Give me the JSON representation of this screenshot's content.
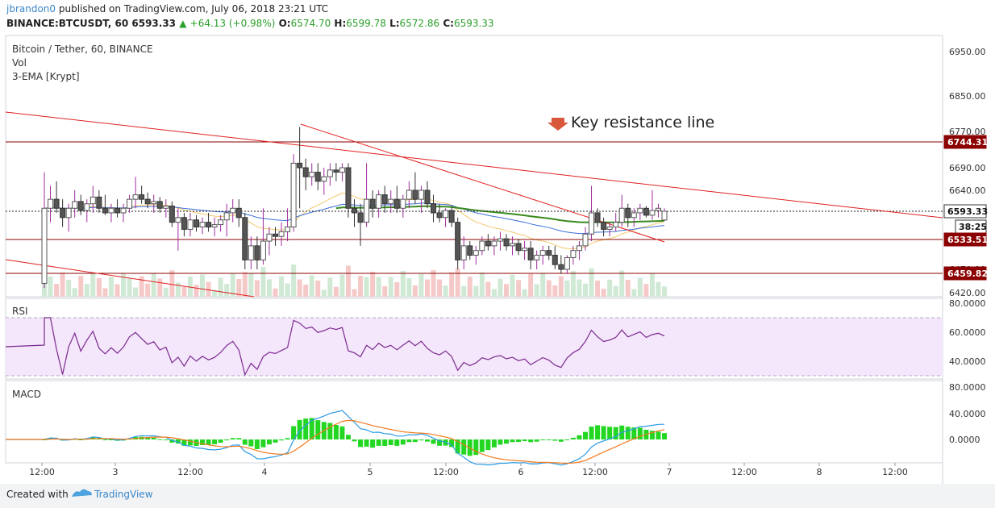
{
  "header": {
    "user": "jbrandon0",
    "published_text": "published on TradingView.com, July 06, 2018 23:21 UTC",
    "symbol": "BINANCE:BTCUSDT, 60",
    "last": "6593.33",
    "change": "+64.13 (+0.98%)",
    "o_label": "O:",
    "o": "6574.70",
    "h_label": "H:",
    "h": "6599.78",
    "l_label": "L:",
    "l": "6572.86",
    "c_label": "C:",
    "c": "6593.33"
  },
  "legend": {
    "title": "Bitcoin / Tether, 60, BINANCE",
    "vol": "Vol",
    "ema": "3-EMA [Krypt]"
  },
  "annotation": "Key resistance line",
  "panes": {
    "rsi": "RSI",
    "macd": "MACD"
  },
  "footer": {
    "created": "Created with",
    "brand": "TradingView"
  },
  "colors": {
    "up": "#ffffff",
    "down": "#555555",
    "wick_up": "#9e2a9e",
    "hline": "#8b0000",
    "trend": "#e02020",
    "ema_fast": "#f5c86b",
    "ema_mid": "#3a6fd8",
    "ema_slow": "#3a8a1e",
    "rsi": "#7b2a8f",
    "rsi_band": "#f4e6fb",
    "macd": "#2b9be6",
    "signal": "#f07a1e",
    "hist": "#22d622",
    "label_bg": "#8b0000",
    "last_bg": "#1b1b1b"
  },
  "chart_data": {
    "type": "candlestick",
    "price_axis": {
      "ticks": [
        "6950.00",
        "6850.00",
        "6770.00",
        "6690.00",
        "6640.00",
        "6593.33",
        "6533.51",
        "6470.00",
        "6420.00"
      ],
      "ylim": [
        6400,
        7000
      ],
      "scale": "log"
    },
    "time_axis": [
      "12:00",
      "3",
      "12:00",
      "4",
      "5",
      "12:00",
      "6",
      "12:00",
      "7",
      "12:00",
      "8",
      "12:00"
    ],
    "price_labels": [
      {
        "text": "6744.31",
        "kind": "resistance"
      },
      {
        "text": "6593.33",
        "kind": "last"
      },
      {
        "text": "38:25",
        "kind": "countdown"
      },
      {
        "text": "6533.51",
        "kind": "support"
      },
      {
        "text": "6459.82",
        "kind": "support"
      }
    ],
    "horizontal_lines": [
      6744.31,
      6533.51,
      6459.82
    ],
    "rsi_axis": [
      "80.0000",
      "60.0000",
      "40.0000"
    ],
    "macd_axis": [
      "80.0000",
      "40.0000",
      "0.0000"
    ],
    "candles": [
      [
        6440,
        6680,
        6430,
        6600
      ],
      [
        6600,
        6650,
        6570,
        6620
      ],
      [
        6620,
        6660,
        6590,
        6600
      ],
      [
        6600,
        6620,
        6560,
        6580
      ],
      [
        6580,
        6610,
        6550,
        6600
      ],
      [
        6600,
        6640,
        6580,
        6615
      ],
      [
        6615,
        6630,
        6585,
        6595
      ],
      [
        6595,
        6620,
        6570,
        6610
      ],
      [
        6610,
        6650,
        6590,
        6625
      ],
      [
        6625,
        6640,
        6590,
        6600
      ],
      [
        6600,
        6630,
        6585,
        6590
      ],
      [
        6590,
        6610,
        6570,
        6600
      ],
      [
        6600,
        6620,
        6580,
        6590
      ],
      [
        6590,
        6610,
        6570,
        6600
      ],
      [
        6600,
        6630,
        6590,
        6620
      ],
      [
        6620,
        6670,
        6600,
        6630
      ],
      [
        6630,
        6650,
        6610,
        6620
      ],
      [
        6620,
        6635,
        6600,
        6610
      ],
      [
        6610,
        6630,
        6590,
        6615
      ],
      [
        6615,
        6625,
        6590,
        6600
      ],
      [
        6600,
        6620,
        6580,
        6605
      ],
      [
        6605,
        6615,
        6560,
        6570
      ],
      [
        6570,
        6600,
        6510,
        6580
      ],
      [
        6580,
        6590,
        6540,
        6555
      ],
      [
        6555,
        6590,
        6540,
        6575
      ],
      [
        6575,
        6585,
        6550,
        6560
      ],
      [
        6560,
        6580,
        6545,
        6570
      ],
      [
        6570,
        6590,
        6550,
        6560
      ],
      [
        6560,
        6580,
        6540,
        6565
      ],
      [
        6565,
        6585,
        6550,
        6575
      ],
      [
        6575,
        6610,
        6540,
        6590
      ],
      [
        6590,
        6620,
        6570,
        6600
      ],
      [
        6600,
        6620,
        6560,
        6580
      ],
      [
        6580,
        6590,
        6470,
        6490
      ],
      [
        6490,
        6540,
        6470,
        6520
      ],
      [
        6520,
        6540,
        6470,
        6490
      ],
      [
        6490,
        6600,
        6480,
        6530
      ],
      [
        6530,
        6560,
        6500,
        6545
      ],
      [
        6545,
        6560,
        6520,
        6540
      ],
      [
        6540,
        6570,
        6520,
        6550
      ],
      [
        6550,
        6600,
        6530,
        6560
      ],
      [
        6560,
        6720,
        6550,
        6700
      ],
      [
        6700,
        6780,
        6600,
        6690
      ],
      [
        6690,
        6710,
        6640,
        6670
      ],
      [
        6670,
        6700,
        6650,
        6680
      ],
      [
        6680,
        6700,
        6640,
        6660
      ],
      [
        6660,
        6690,
        6630,
        6670
      ],
      [
        6670,
        6700,
        6650,
        6685
      ],
      [
        6685,
        6700,
        6660,
        6680
      ],
      [
        6680,
        6700,
        6660,
        6690
      ],
      [
        6690,
        6700,
        6580,
        6600
      ],
      [
        6600,
        6620,
        6560,
        6590
      ],
      [
        6590,
        6610,
        6520,
        6570
      ],
      [
        6570,
        6700,
        6560,
        6620
      ],
      [
        6620,
        6640,
        6580,
        6600
      ],
      [
        6600,
        6640,
        6580,
        6630
      ],
      [
        6630,
        6650,
        6590,
        6610
      ],
      [
        6610,
        6640,
        6590,
        6620
      ],
      [
        6620,
        6650,
        6590,
        6600
      ],
      [
        6600,
        6630,
        6580,
        6620
      ],
      [
        6620,
        6660,
        6600,
        6640
      ],
      [
        6640,
        6680,
        6610,
        6620
      ],
      [
        6620,
        6650,
        6590,
        6640
      ],
      [
        6640,
        6660,
        6600,
        6610
      ],
      [
        6610,
        6630,
        6570,
        6590
      ],
      [
        6590,
        6610,
        6570,
        6580
      ],
      [
        6580,
        6600,
        6560,
        6595
      ],
      [
        6595,
        6605,
        6560,
        6570
      ],
      [
        6570,
        6580,
        6470,
        6490
      ],
      [
        6490,
        6540,
        6470,
        6520
      ],
      [
        6520,
        6530,
        6490,
        6500
      ],
      [
        6500,
        6520,
        6480,
        6510
      ],
      [
        6510,
        6540,
        6500,
        6530
      ],
      [
        6530,
        6545,
        6510,
        6520
      ],
      [
        6520,
        6540,
        6500,
        6530
      ],
      [
        6530,
        6550,
        6510,
        6535
      ],
      [
        6535,
        6545,
        6510,
        6520
      ],
      [
        6520,
        6540,
        6500,
        6525
      ],
      [
        6525,
        6535,
        6500,
        6510
      ],
      [
        6510,
        6530,
        6490,
        6515
      ],
      [
        6515,
        6530,
        6470,
        6490
      ],
      [
        6490,
        6510,
        6470,
        6500
      ],
      [
        6500,
        6520,
        6480,
        6510
      ],
      [
        6510,
        6520,
        6490,
        6500
      ],
      [
        6500,
        6520,
        6470,
        6480
      ],
      [
        6480,
        6500,
        6460,
        6470
      ],
      [
        6470,
        6500,
        6460,
        6495
      ],
      [
        6495,
        6520,
        6480,
        6510
      ],
      [
        6510,
        6530,
        6490,
        6520
      ],
      [
        6520,
        6560,
        6510,
        6545
      ],
      [
        6545,
        6650,
        6530,
        6590
      ],
      [
        6590,
        6600,
        6560,
        6570
      ],
      [
        6570,
        6580,
        6540,
        6555
      ],
      [
        6555,
        6570,
        6540,
        6560
      ],
      [
        6560,
        6590,
        6550,
        6570
      ],
      [
        6570,
        6630,
        6560,
        6600
      ],
      [
        6600,
        6610,
        6560,
        6580
      ],
      [
        6580,
        6600,
        6560,
        6590
      ],
      [
        6590,
        6610,
        6575,
        6600
      ],
      [
        6600,
        6605,
        6580,
        6585
      ],
      [
        6585,
        6640,
        6575,
        6595
      ],
      [
        6595,
        6610,
        6580,
        6600
      ],
      [
        6574.7,
        6599.78,
        6572.86,
        6593.33
      ]
    ]
  }
}
